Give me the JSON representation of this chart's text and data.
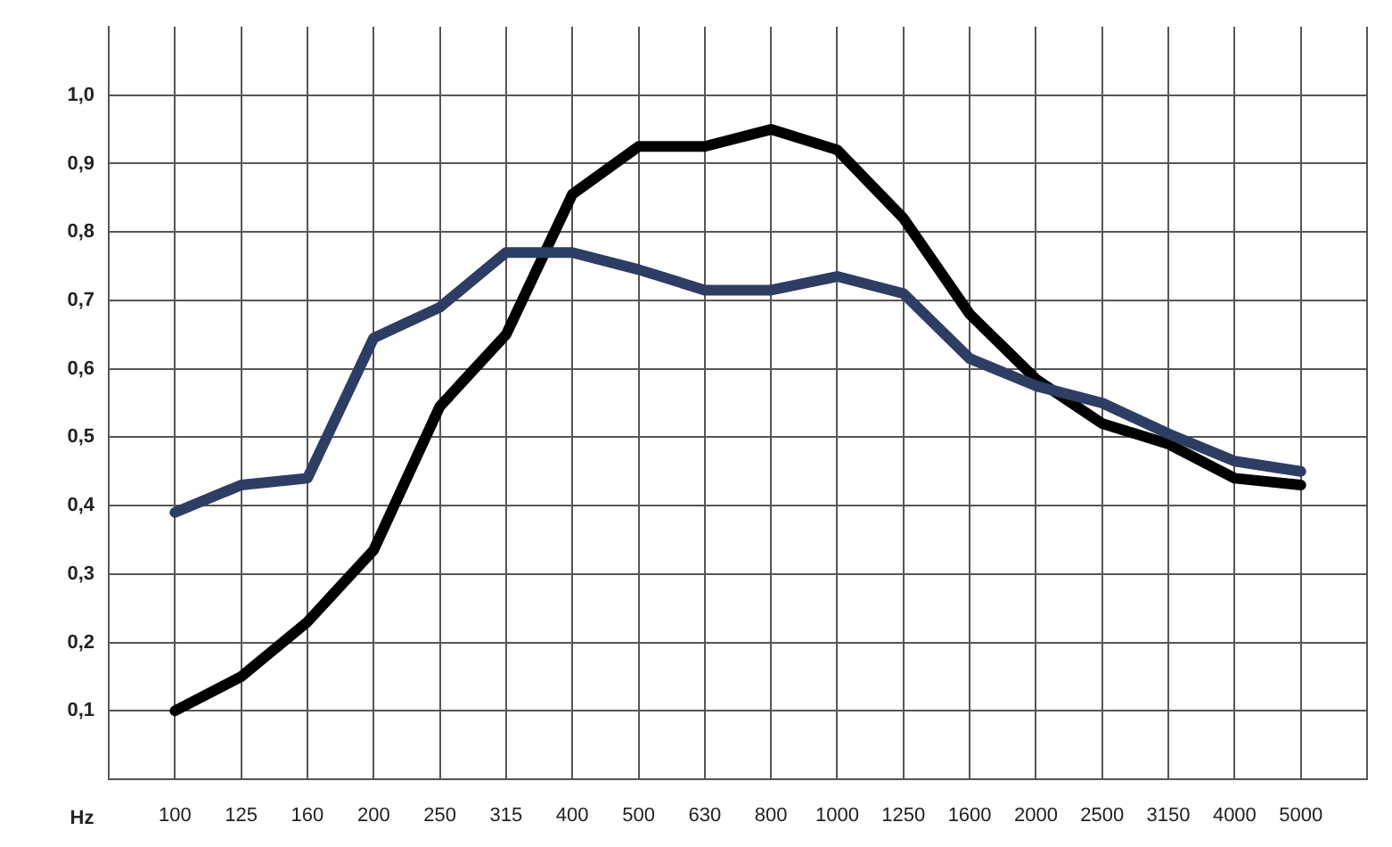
{
  "chart_data": {
    "type": "line",
    "xlabel": "Hz",
    "categories": [
      "100",
      "125",
      "160",
      "200",
      "250",
      "315",
      "400",
      "500",
      "630",
      "800",
      "1000",
      "1250",
      "1600",
      "2000",
      "2500",
      "3150",
      "4000",
      "5000"
    ],
    "series": [
      {
        "color": "#2e3d63",
        "values": [
          0.39,
          0.43,
          0.44,
          0.645,
          0.69,
          0.77,
          0.77,
          0.745,
          0.715,
          0.715,
          0.735,
          0.71,
          0.615,
          0.575,
          0.55,
          0.505,
          0.465,
          0.45
        ]
      },
      {
        "color": "#000000",
        "values": [
          0.1,
          0.15,
          0.23,
          0.335,
          0.545,
          0.65,
          0.855,
          0.925,
          0.925,
          0.95,
          0.92,
          0.82,
          0.68,
          0.585,
          0.52,
          0.49,
          0.44,
          0.43
        ]
      }
    ],
    "ylim": [
      0,
      1.1
    ],
    "yticks": [
      {
        "value": 0.1,
        "label": "0,1"
      },
      {
        "value": 0.2,
        "label": "0,2"
      },
      {
        "value": 0.3,
        "label": "0,3"
      },
      {
        "value": 0.4,
        "label": "0,4"
      },
      {
        "value": 0.5,
        "label": "0,5"
      },
      {
        "value": 0.6,
        "label": "0,6"
      },
      {
        "value": 0.7,
        "label": "0,7"
      },
      {
        "value": 0.8,
        "label": "0,8"
      },
      {
        "value": 0.9,
        "label": "0,9"
      },
      {
        "value": 1.0,
        "label": "1,0"
      }
    ],
    "grid": true,
    "legend": false,
    "marker": "none",
    "line_style": "solid"
  }
}
